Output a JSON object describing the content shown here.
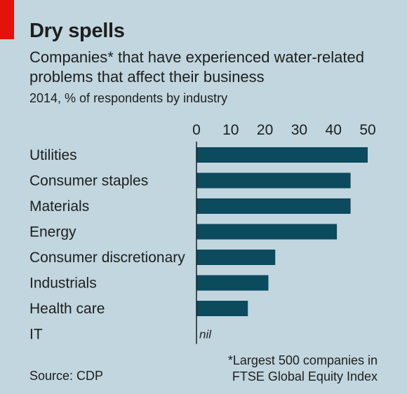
{
  "header": {
    "title": "Dry spells",
    "subtitle": "Companies* that have experienced water-related problems that affect their business",
    "subsubtitle": "2014, % of respondents by industry"
  },
  "footer": {
    "footnote_line1": "*Largest 500 companies in",
    "footnote_line2": "FTSE Global Equity Index",
    "source": "Source: CDP"
  },
  "colors": {
    "bar": "#0c4a5e",
    "axis": "#1e1e1e",
    "background": "#c1d6df",
    "accent": "#e3120b"
  },
  "chart_data": {
    "type": "bar",
    "orientation": "horizontal",
    "categories": [
      "Utilities",
      "Consumer staples",
      "Materials",
      "Energy",
      "Consumer discretionary",
      "Industrials",
      "Health care",
      "IT"
    ],
    "values": [
      50,
      45,
      45,
      41,
      23,
      21,
      15,
      0
    ],
    "value_labels": [
      "",
      "",
      "",
      "",
      "",
      "",
      "",
      "nil"
    ],
    "xlim": [
      0,
      50
    ],
    "xticks": [
      0,
      10,
      20,
      30,
      40,
      50
    ],
    "tick_labels": [
      "0",
      "10",
      "20",
      "30",
      "40",
      "50"
    ],
    "axis_position": "top",
    "grid": false,
    "legend": "none"
  }
}
